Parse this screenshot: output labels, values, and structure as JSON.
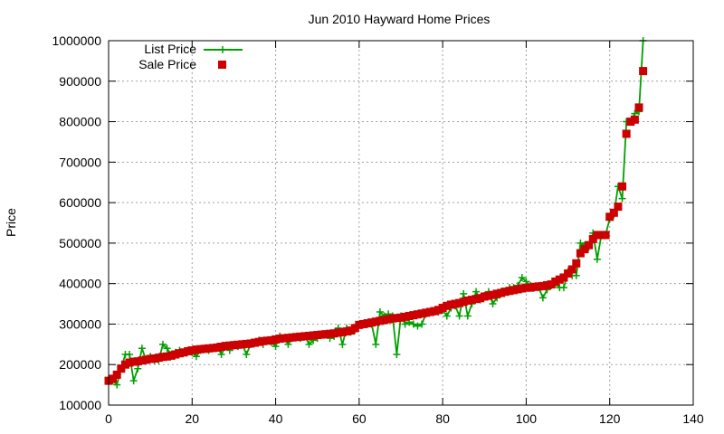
{
  "chart_data": {
    "type": "line",
    "title": "Jun 2010 Hayward Home Prices",
    "xlabel": "",
    "ylabel": "Price",
    "xlim": [
      0,
      140
    ],
    "ylim": [
      100000,
      1000000
    ],
    "xticks": [
      0,
      20,
      40,
      60,
      80,
      100,
      120,
      140
    ],
    "yticks": [
      100000,
      200000,
      300000,
      400000,
      500000,
      600000,
      700000,
      800000,
      900000,
      1000000
    ],
    "grid": true,
    "legend": "top-left",
    "colors": {
      "list": "#00a000",
      "sale": "#cc0000"
    },
    "x": [
      0,
      1,
      2,
      3,
      4,
      5,
      6,
      7,
      8,
      9,
      10,
      11,
      12,
      13,
      14,
      15,
      16,
      17,
      18,
      19,
      20,
      21,
      22,
      23,
      24,
      25,
      26,
      27,
      28,
      29,
      30,
      31,
      32,
      33,
      34,
      35,
      36,
      37,
      38,
      39,
      40,
      41,
      42,
      43,
      44,
      45,
      46,
      47,
      48,
      49,
      50,
      51,
      52,
      53,
      54,
      55,
      56,
      57,
      58,
      59,
      60,
      61,
      62,
      63,
      64,
      65,
      66,
      67,
      68,
      69,
      70,
      71,
      72,
      73,
      74,
      75,
      76,
      77,
      78,
      79,
      80,
      81,
      82,
      83,
      84,
      85,
      86,
      87,
      88,
      89,
      90,
      91,
      92,
      93,
      94,
      95,
      96,
      97,
      98,
      99,
      100,
      101,
      102,
      103,
      104,
      105,
      106,
      107,
      108,
      109,
      110,
      111,
      112,
      113,
      114,
      115,
      116,
      117,
      118,
      119,
      120,
      121,
      122,
      123,
      124,
      125,
      126,
      127,
      128
    ],
    "series": [
      {
        "name": "List Price",
        "style": "line-plus",
        "values": [
          160000,
          160000,
          150000,
          190000,
          225000,
          225000,
          160000,
          190000,
          240000,
          210000,
          220000,
          210000,
          210000,
          250000,
          240000,
          225000,
          230000,
          235000,
          230000,
          235000,
          230000,
          220000,
          235000,
          240000,
          235000,
          240000,
          245000,
          225000,
          245000,
          235000,
          250000,
          245000,
          250000,
          225000,
          250000,
          255000,
          260000,
          250000,
          260000,
          255000,
          245000,
          270000,
          265000,
          250000,
          265000,
          270000,
          265000,
          270000,
          250000,
          260000,
          265000,
          275000,
          275000,
          265000,
          270000,
          290000,
          250000,
          290000,
          280000,
          285000,
          300000,
          300000,
          300000,
          300000,
          250000,
          330000,
          320000,
          325000,
          320000,
          225000,
          320000,
          300000,
          305000,
          300000,
          295000,
          300000,
          325000,
          330000,
          330000,
          330000,
          335000,
          320000,
          340000,
          345000,
          320000,
          375000,
          320000,
          350000,
          380000,
          360000,
          370000,
          380000,
          350000,
          365000,
          380000,
          380000,
          390000,
          390000,
          395000,
          415000,
          405000,
          395000,
          390000,
          390000,
          365000,
          385000,
          395000,
          400000,
          390000,
          390000,
          430000,
          420000,
          420000,
          500000,
          495000,
          490000,
          525000,
          460000,
          520000,
          520000,
          560000,
          570000,
          640000,
          610000,
          800000,
          800000,
          820000,
          825000,
          1000000
        ]
      },
      {
        "name": "Sale Price",
        "style": "square",
        "values": [
          160000,
          165000,
          175000,
          190000,
          200000,
          205000,
          207000,
          208000,
          210000,
          212000,
          214000,
          215000,
          217000,
          219000,
          220000,
          222000,
          225000,
          228000,
          230000,
          233000,
          235000,
          237000,
          238000,
          239000,
          240000,
          241000,
          242000,
          244000,
          246000,
          247000,
          248000,
          249000,
          250000,
          251000,
          252000,
          254000,
          256000,
          258000,
          259000,
          260000,
          262000,
          264000,
          265000,
          266000,
          267000,
          268000,
          269000,
          270000,
          271000,
          272000,
          273000,
          274000,
          275000,
          276000,
          277000,
          279000,
          280000,
          282000,
          284000,
          290000,
          298000,
          300000,
          302000,
          304000,
          306000,
          308000,
          310000,
          312000,
          314000,
          315000,
          316000,
          318000,
          320000,
          322000,
          324000,
          326000,
          328000,
          330000,
          332000,
          335000,
          340000,
          345000,
          348000,
          350000,
          352000,
          355000,
          358000,
          360000,
          362000,
          364000,
          368000,
          370000,
          372000,
          375000,
          377000,
          380000,
          382000,
          384000,
          386000,
          388000,
          390000,
          390000,
          392000,
          393000,
          394000,
          396000,
          398000,
          405000,
          410000,
          415000,
          425000,
          435000,
          450000,
          475000,
          485000,
          495000,
          510000,
          520000,
          520000,
          520000,
          565000,
          575000,
          590000,
          640000,
          770000,
          800000,
          805000,
          835000,
          925000
        ]
      }
    ]
  }
}
